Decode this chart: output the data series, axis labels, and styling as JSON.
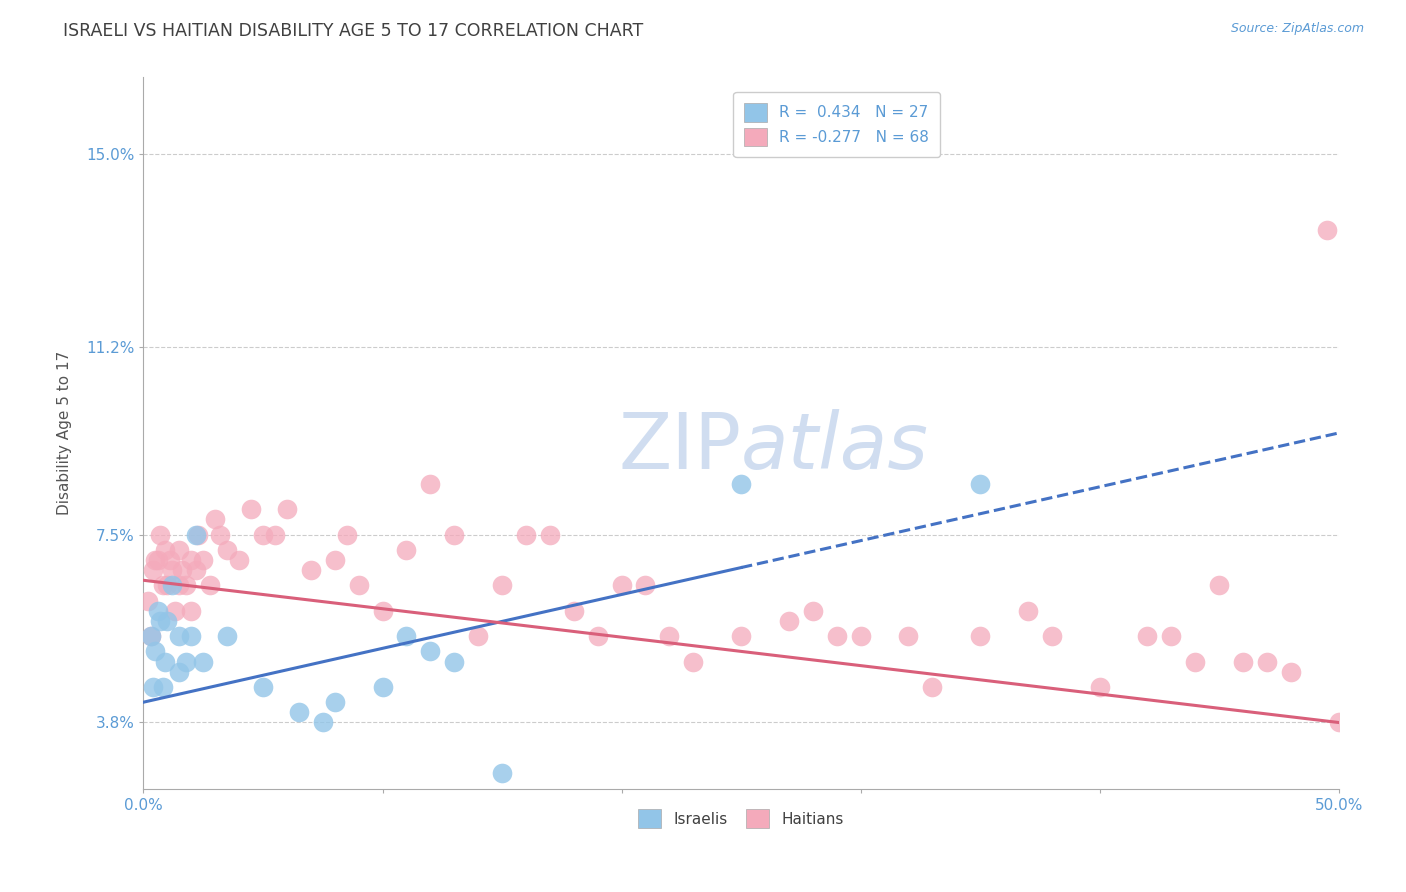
{
  "title": "ISRAELI VS HAITIAN DISABILITY AGE 5 TO 17 CORRELATION CHART",
  "source_text": "Source: ZipAtlas.com",
  "ylabel": "Disability Age 5 to 17",
  "xlabel": "",
  "xlim": [
    0.0,
    50.0
  ],
  "ylim": [
    2.5,
    16.5
  ],
  "yticks": [
    3.8,
    7.5,
    11.2,
    15.0
  ],
  "yticklabels": [
    "3.8%",
    "7.5%",
    "11.2%",
    "15.0%"
  ],
  "legend_r_israeli": "R =  0.434",
  "legend_n_israeli": "N = 27",
  "legend_r_haitian": "R = -0.277",
  "legend_n_haitian": "N = 68",
  "israeli_color": "#92C5E8",
  "haitian_color": "#F4AABB",
  "trend_israeli_color": "#4472C4",
  "trend_haitian_color": "#D95F7A",
  "title_color": "#404040",
  "axis_label_color": "#5B9BD5",
  "watermark_color": "#C8D8EE",
  "israeli_x": [
    0.3,
    0.4,
    0.5,
    0.6,
    0.7,
    0.8,
    0.9,
    1.0,
    1.2,
    1.5,
    1.5,
    1.8,
    2.0,
    2.2,
    2.5,
    3.5,
    5.0,
    6.5,
    7.5,
    8.0,
    10.0,
    11.0,
    12.0,
    13.0,
    15.0,
    25.0,
    35.0
  ],
  "israeli_y": [
    5.5,
    4.5,
    5.2,
    6.0,
    5.8,
    4.5,
    5.0,
    5.8,
    6.5,
    5.5,
    4.8,
    5.0,
    5.5,
    7.5,
    5.0,
    5.5,
    4.5,
    4.0,
    3.8,
    4.2,
    4.5,
    5.5,
    5.2,
    5.0,
    2.8,
    8.5,
    8.5
  ],
  "haitian_x": [
    0.2,
    0.3,
    0.4,
    0.5,
    0.6,
    0.7,
    0.8,
    0.9,
    1.0,
    1.1,
    1.2,
    1.3,
    1.5,
    1.5,
    1.6,
    1.8,
    2.0,
    2.0,
    2.2,
    2.3,
    2.5,
    2.8,
    3.0,
    3.2,
    3.5,
    4.0,
    4.5,
    5.0,
    5.5,
    6.0,
    7.0,
    8.0,
    8.5,
    9.0,
    10.0,
    11.0,
    12.0,
    13.0,
    14.0,
    15.0,
    16.0,
    17.0,
    18.0,
    19.0,
    20.0,
    21.0,
    22.0,
    23.0,
    25.0,
    27.0,
    28.0,
    29.0,
    30.0,
    32.0,
    33.0,
    35.0,
    37.0,
    38.0,
    40.0,
    42.0,
    43.0,
    44.0,
    45.0,
    46.0,
    47.0,
    48.0,
    49.5,
    50.0
  ],
  "haitian_y": [
    6.2,
    5.5,
    6.8,
    7.0,
    7.0,
    7.5,
    6.5,
    7.2,
    6.5,
    7.0,
    6.8,
    6.0,
    7.2,
    6.5,
    6.8,
    6.5,
    6.0,
    7.0,
    6.8,
    7.5,
    7.0,
    6.5,
    7.8,
    7.5,
    7.2,
    7.0,
    8.0,
    7.5,
    7.5,
    8.0,
    6.8,
    7.0,
    7.5,
    6.5,
    6.0,
    7.2,
    8.5,
    7.5,
    5.5,
    6.5,
    7.5,
    7.5,
    6.0,
    5.5,
    6.5,
    6.5,
    5.5,
    5.0,
    5.5,
    5.8,
    6.0,
    5.5,
    5.5,
    5.5,
    4.5,
    5.5,
    6.0,
    5.5,
    4.5,
    5.5,
    5.5,
    5.0,
    6.5,
    5.0,
    5.0,
    4.8,
    13.5,
    3.8
  ],
  "israeli_trend_x0": 0.0,
  "israeli_trend_y0": 4.2,
  "israeli_trend_x1": 50.0,
  "israeli_trend_y1": 9.5,
  "israeli_solid_end": 25.0,
  "haitian_trend_x0": 0.0,
  "haitian_trend_y0": 6.6,
  "haitian_trend_x1": 50.0,
  "haitian_trend_y1": 3.8
}
